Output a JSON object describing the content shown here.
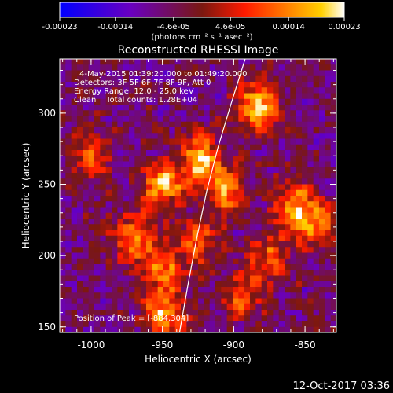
{
  "colorbar": {
    "tick_labels": [
      "-0.00023",
      "-0.00014",
      "-4.6e-05",
      "4.6e-05",
      "0.00014",
      "0.00023"
    ],
    "tick_values": [
      -0.00023,
      -0.00014,
      -4.6e-05,
      4.6e-05,
      0.00014,
      0.00023
    ],
    "range": [
      -0.00023,
      0.00023
    ],
    "units_label": "(photons cm⁻² s⁻¹ asec⁻²)",
    "colormap": [
      "#0000ff",
      "#6a00c0",
      "#7a1810",
      "#ff1a00",
      "#ff8000",
      "#ffd000",
      "#ffffff"
    ]
  },
  "annotations": {
    "time_range": "4-May-2015 01:39:20.000 to 01:49:20.000",
    "detectors": "Detectors: 3F 5F 6F 7F 8F 9F, Att 0",
    "energy": "Energy Range: 12.0 - 25.0 keV",
    "method": "Clean    Total counts: 1.28E+04",
    "peak": "Position of Peak = [-884,304]"
  },
  "footer": {
    "timestamp": "12-Oct-2017 03:36"
  },
  "chart_data": {
    "type": "heatmap",
    "title": "Reconstructed RHESSI Image",
    "xlabel": "Heliocentric X (arcsec)",
    "ylabel": "Heliocentric Y (arcsec)",
    "xlim": [
      -1022,
      -828
    ],
    "ylim": [
      146,
      338
    ],
    "x_ticks": [
      -1000,
      -950,
      -900,
      -850
    ],
    "x_tick_labels": [
      "-1000",
      "-950",
      "-900",
      "-850"
    ],
    "y_ticks": [
      150,
      200,
      250,
      300
    ],
    "y_tick_labels": [
      "150",
      "200",
      "250",
      "300"
    ],
    "peak": [
      -884,
      304
    ],
    "bright_sources": [
      {
        "x": -923,
        "y": 268,
        "level": 0.95
      },
      {
        "x": -884,
        "y": 304,
        "level": 1.0
      },
      {
        "x": -950,
        "y": 250,
        "level": 0.9
      },
      {
        "x": -905,
        "y": 245,
        "level": 0.8
      },
      {
        "x": -970,
        "y": 212,
        "level": 0.75
      },
      {
        "x": -950,
        "y": 190,
        "level": 0.65
      },
      {
        "x": -948,
        "y": 160,
        "level": 0.85
      },
      {
        "x": -858,
        "y": 235,
        "level": 0.8
      },
      {
        "x": -843,
        "y": 222,
        "level": 0.7
      },
      {
        "x": -895,
        "y": 172,
        "level": 0.6
      },
      {
        "x": -1000,
        "y": 270,
        "level": 0.55
      },
      {
        "x": -875,
        "y": 200,
        "level": 0.6
      },
      {
        "x": -925,
        "y": 210,
        "level": 0.65
      }
    ],
    "limb_curve": [
      [
        -938,
        146
      ],
      [
        -932,
        180
      ],
      [
        -926,
        212
      ],
      [
        -919,
        245
      ],
      [
        -911,
        276
      ],
      [
        -902,
        306
      ],
      [
        -892,
        338
      ]
    ]
  }
}
